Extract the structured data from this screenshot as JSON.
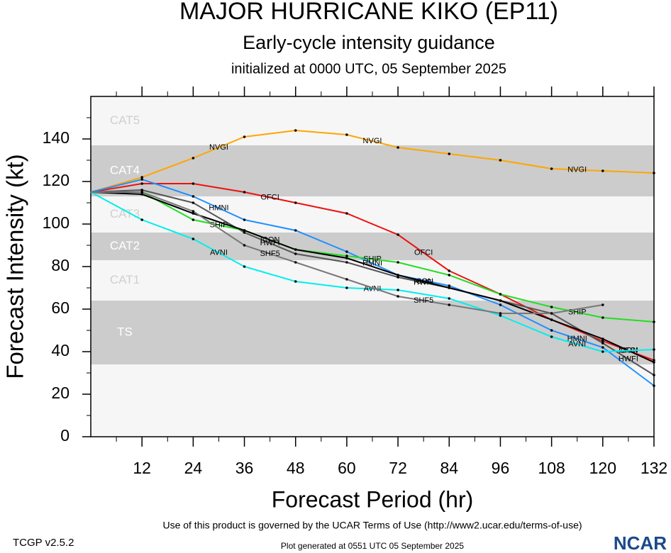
{
  "chart_data": {
    "type": "line",
    "title": "MAJOR HURRICANE KIKO (EP11)",
    "subtitle": "Early-cycle intensity guidance",
    "initialized": "initialized at 0000 UTC, 05 September 2025",
    "x_label": "Forecast Period (hr)",
    "y_label": "Forecast Intensity (kt)",
    "x": [
      0,
      12,
      24,
      36,
      48,
      60,
      72,
      84,
      96,
      108,
      120,
      132
    ],
    "xlim": [
      0,
      132
    ],
    "xticks": [
      12,
      24,
      36,
      48,
      60,
      72,
      84,
      96,
      108,
      120,
      132
    ],
    "ylim": [
      0,
      160
    ],
    "yticks": [
      0,
      20,
      40,
      60,
      80,
      100,
      120,
      140
    ],
    "bands": [
      {
        "label": "CAT5",
        "range": [
          137,
          160
        ],
        "shaded": false
      },
      {
        "label": "CAT4",
        "range": [
          113,
          137
        ],
        "shaded": true
      },
      {
        "label": "CAT3",
        "range": [
          96,
          113
        ],
        "shaded": false
      },
      {
        "label": "CAT2",
        "range": [
          83,
          96
        ],
        "shaded": true
      },
      {
        "label": "CAT1",
        "range": [
          64,
          83
        ],
        "shaded": false
      },
      {
        "label": "TS",
        "range": [
          34,
          64
        ],
        "shaded": true
      }
    ],
    "series": [
      {
        "name": "NVGI",
        "color": "#ffa500",
        "values": [
          115,
          122,
          131,
          141,
          144,
          142,
          136,
          133,
          130,
          126,
          125,
          124
        ]
      },
      {
        "name": "OFCI",
        "color": "#ee1111",
        "values": [
          115,
          119,
          119,
          115,
          110,
          105,
          95,
          78,
          67,
          55,
          45,
          36
        ]
      },
      {
        "name": "HMNI",
        "color": "#1e90ff",
        "values": [
          115,
          121,
          113,
          102,
          97,
          87,
          76,
          71,
          62,
          50,
          42,
          24
        ]
      },
      {
        "name": "HWFI",
        "color": "#555555",
        "values": [
          115,
          116,
          110,
          96,
          86,
          82,
          75,
          70,
          64,
          58,
          44,
          29
        ]
      },
      {
        "name": "SHIP",
        "color": "#22dd22",
        "values": [
          115,
          115,
          102,
          97,
          88,
          85,
          82,
          76,
          67,
          61,
          56,
          54
        ]
      },
      {
        "name": "ICON",
        "color": "#000000",
        "values": [
          115,
          114,
          105,
          97,
          88,
          84,
          76,
          70,
          64,
          55,
          46,
          35
        ]
      },
      {
        "name": "AVNI",
        "color": "#00eeee",
        "values": [
          115,
          102,
          93,
          80,
          73,
          70,
          69,
          65,
          57,
          47,
          40,
          41
        ]
      },
      {
        "name": "SHF5",
        "color": "#777777",
        "values": [
          115,
          115,
          106,
          90,
          82,
          74,
          66,
          62,
          58,
          58,
          62,
          null
        ]
      }
    ],
    "footer_version": "TCGP v2.5.2",
    "footer_terms": "Use of this product is governed by the UCAR Terms of Use (http://www2.ucar.edu/terms-of-use)",
    "footer_generated": "Plot generated at 0551 UTC   05 September 2025",
    "logo": "NCAR"
  }
}
